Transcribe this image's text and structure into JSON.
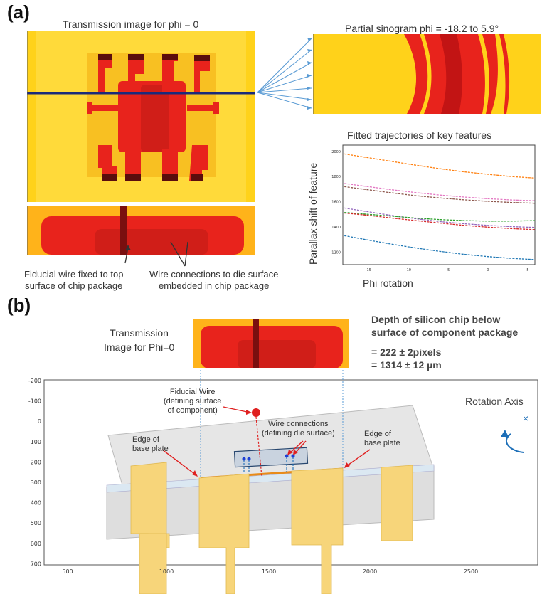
{
  "panel_a": {
    "label": "(a)",
    "transmission_title": "Transmission image for phi = 0",
    "sinogram_title": "Partial sinogram phi =  -18.2 to 5.9°",
    "fiducial_caption_line1": "Fiducial wire fixed to top",
    "fiducial_caption_line2": "surface of chip package",
    "wire_caption_line1": "Wire connections to die surface",
    "wire_caption_line2": "embedded in chip package"
  },
  "panel_b": {
    "label": "(b)",
    "transmission_caption_line1": "Transmission",
    "transmission_caption_line2": "Image for Phi=0",
    "depth_title_line1": "Depth of silicon chip below",
    "depth_title_line2": "surface of component package",
    "depth_value_px": "= 222 ± 2pixels",
    "depth_value_um": "= 1314 ± 12 µm",
    "fiducial_label_1": "Fiducial Wire",
    "fiducial_label_2": "(defining surface",
    "fiducial_label_3": "of component)",
    "wire_label_1": "Wire connections",
    "wire_label_2": "(defining die surface)",
    "edge_left_1": "Edge of",
    "edge_left_2": "base plate",
    "edge_right_1": "Edge of",
    "edge_right_2": "base plate",
    "rotation_label": "Rotation Axis",
    "rotation_marker": "×"
  },
  "chart_data": {
    "type": "line",
    "title": "Fitted trajectories of key features",
    "xlabel": "Phi rotation",
    "ylabel": "Parallax shift of feature",
    "x_ticks": [
      -15,
      -10,
      -5,
      0,
      5
    ],
    "y_ticks": [
      1200,
      1400,
      1600,
      1800,
      2000
    ],
    "xlim": [
      -18.2,
      5.9
    ],
    "ylim": [
      1100,
      2050
    ],
    "x": [
      -18,
      -15,
      -12,
      -9,
      -6,
      -3,
      0,
      3,
      5.9
    ],
    "series": [
      {
        "color": "#ff7f0e",
        "values": [
          1980,
          1950,
          1920,
          1890,
          1862,
          1838,
          1818,
          1800,
          1788
        ]
      },
      {
        "color": "#e377c2",
        "values": [
          1745,
          1720,
          1695,
          1672,
          1653,
          1637,
          1624,
          1614,
          1608
        ]
      },
      {
        "color": "#8c564b",
        "values": [
          1720,
          1695,
          1670,
          1648,
          1630,
          1615,
          1603,
          1594,
          1588
        ]
      },
      {
        "color": "#9467bd",
        "values": [
          1550,
          1520,
          1490,
          1465,
          1442,
          1425,
          1412,
          1402,
          1396
        ]
      },
      {
        "color": "#2ca02c",
        "values": [
          1515,
          1500,
          1485,
          1470,
          1458,
          1450,
          1446,
          1446,
          1450
        ]
      },
      {
        "color": "#d62728",
        "values": [
          1510,
          1492,
          1470,
          1450,
          1430,
          1412,
          1398,
          1386,
          1378
        ]
      },
      {
        "color": "#1f77b4",
        "values": [
          1330,
          1295,
          1262,
          1232,
          1205,
          1182,
          1164,
          1150,
          1140
        ]
      }
    ]
  },
  "bottom_plot": {
    "x_ticks": [
      "500",
      "1000",
      "1500",
      "2000",
      "2500"
    ],
    "y_ticks": [
      "-200",
      "-100",
      "0",
      "100",
      "200",
      "300",
      "400",
      "500",
      "600",
      "700"
    ]
  },
  "colors": {
    "xray_bg": "#ffd21a",
    "xray_feature": "#e8231c",
    "xray_dark": "#5a0d0d",
    "pin": "#f7d57a",
    "package": "#d9d9d9",
    "accent_blue": "#1d6fb8"
  }
}
